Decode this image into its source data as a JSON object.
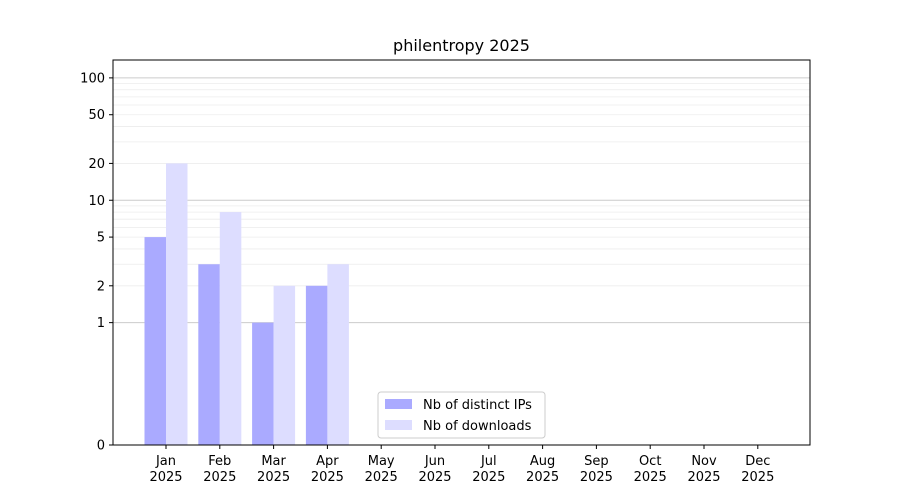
{
  "chart_data": {
    "type": "bar",
    "title": "philentropy 2025",
    "xlabel": "",
    "ylabel": "",
    "yscale": "symlog",
    "ylim": [
      0,
      140
    ],
    "yticks": [
      0,
      1,
      2,
      5,
      10,
      20,
      50,
      100
    ],
    "categories": [
      [
        "Jan",
        "2025"
      ],
      [
        "Feb",
        "2025"
      ],
      [
        "Mar",
        "2025"
      ],
      [
        "Apr",
        "2025"
      ],
      [
        "May",
        "2025"
      ],
      [
        "Jun",
        "2025"
      ],
      [
        "Jul",
        "2025"
      ],
      [
        "Aug",
        "2025"
      ],
      [
        "Sep",
        "2025"
      ],
      [
        "Oct",
        "2025"
      ],
      [
        "Nov",
        "2025"
      ],
      [
        "Dec",
        "2025"
      ]
    ],
    "series": [
      {
        "name": "Nb of distinct IPs",
        "color": "#aaaaff",
        "values": [
          5,
          3,
          1,
          2,
          null,
          null,
          null,
          null,
          null,
          null,
          null,
          null
        ]
      },
      {
        "name": "Nb of downloads",
        "color": "#ddddff",
        "values": [
          20,
          8,
          2,
          3,
          null,
          null,
          null,
          null,
          null,
          null,
          null,
          null
        ]
      }
    ],
    "grid": true,
    "legend_position": "lower-center"
  }
}
